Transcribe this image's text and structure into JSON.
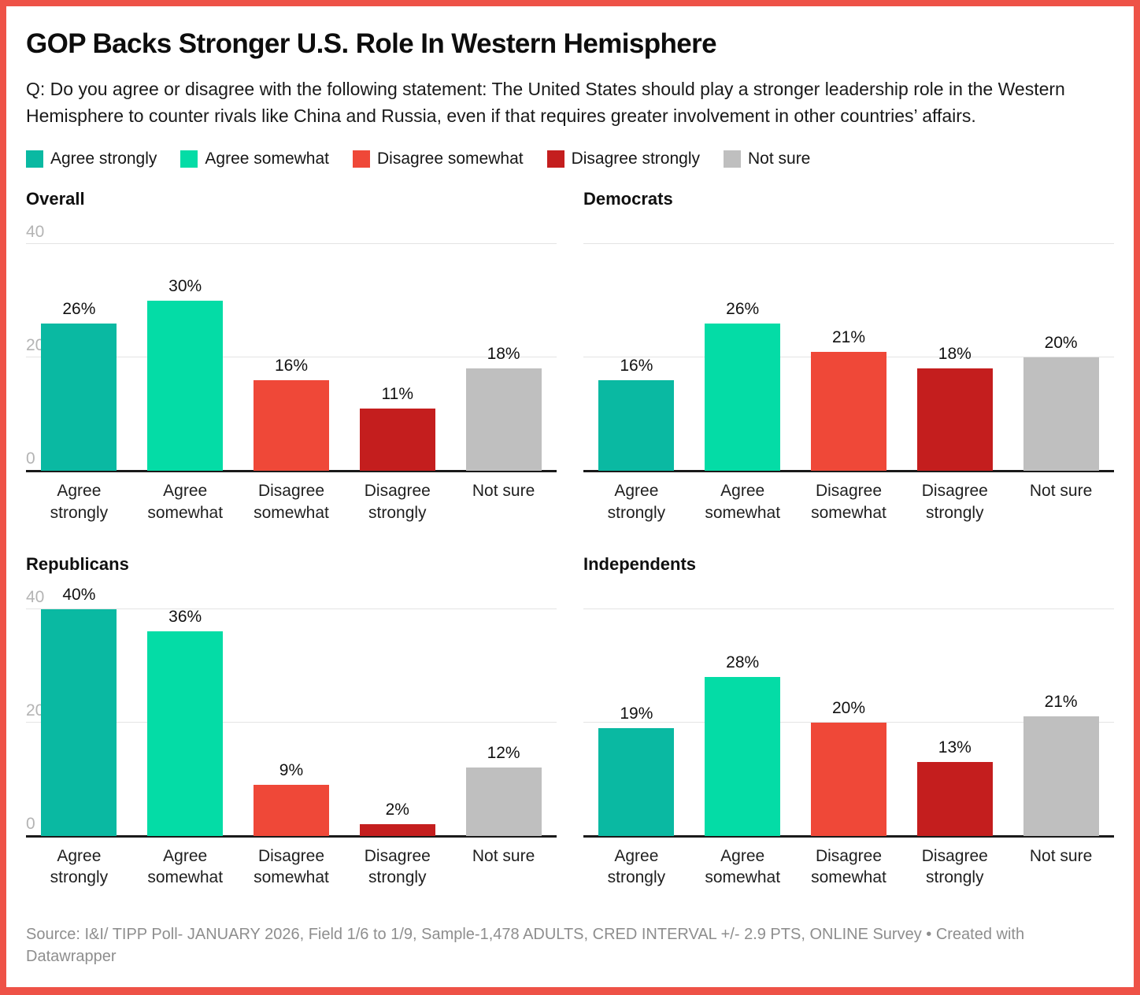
{
  "frame": {
    "border_color": "#ee5247"
  },
  "header": {
    "title": "GOP Backs Stronger U.S. Role In Western Hemisphere",
    "question": "Q: Do you agree or disagree with the following statement: The United States should play a stronger leadership role in the Western Hemisphere to counter rivals like China and Russia, even if that requires greater involvement in other countries’ affairs."
  },
  "chart_data": {
    "type": "bar",
    "layout": "small-multiples-2x2",
    "categories": [
      "Agree strongly",
      "Agree somewhat",
      "Disagree somewhat",
      "Disagree strongly",
      "Not sure"
    ],
    "colors": [
      "#0ab9a2",
      "#04dca6",
      "#ef4838",
      "#c41e1e",
      "#bfbfbf"
    ],
    "value_suffix": "%",
    "y_ticks": [
      0,
      20,
      40
    ],
    "ylim": [
      0,
      45
    ],
    "grid": true,
    "legend_position": "top",
    "panels": [
      {
        "title": "Overall",
        "values": [
          26,
          30,
          16,
          11,
          18
        ],
        "show_axis_labels": true
      },
      {
        "title": "Democrats",
        "values": [
          16,
          26,
          21,
          18,
          20
        ],
        "show_axis_labels": false
      },
      {
        "title": "Republicans",
        "values": [
          40,
          36,
          9,
          2,
          12
        ],
        "show_axis_labels": true
      },
      {
        "title": "Independents",
        "values": [
          19,
          28,
          20,
          13,
          21
        ],
        "show_axis_labels": false
      }
    ]
  },
  "footer": {
    "source": "Source: I&I/ TIPP Poll- JANUARY 2026, Field 1/6 to 1/9, Sample-1,478 ADULTS, CRED INTERVAL +/- 2.9 PTS, ONLINE Survey • Created with Datawrapper"
  }
}
